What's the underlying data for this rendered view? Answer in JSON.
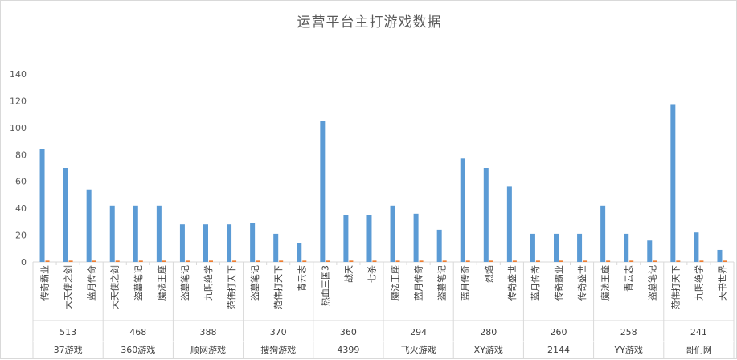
{
  "chart_data": {
    "type": "bar",
    "title": "运营平台主打游戏数据",
    "ylim": [
      0,
      140
    ],
    "yticks": [
      0,
      20,
      40,
      60,
      80,
      100,
      120,
      140
    ],
    "grid": false,
    "legend": "none",
    "colors": {
      "primary": "#5b9bd5",
      "secondary": "#ed7d31"
    },
    "groups": [
      {
        "platform": "37游戏",
        "count": "513",
        "games": [
          "传奇霸业",
          "大天使之剑",
          "蓝月传奇"
        ],
        "values": [
          84,
          70,
          54
        ]
      },
      {
        "platform": "360游戏",
        "count": "468",
        "games": [
          "大天使之剑",
          "盗墓笔记",
          "魔法王座"
        ],
        "values": [
          42,
          42,
          42
        ]
      },
      {
        "platform": "顺网游戏",
        "count": "388",
        "games": [
          "盗墓笔记",
          "九阴绝学",
          "范伟打天下"
        ],
        "values": [
          28,
          28,
          28
        ]
      },
      {
        "platform": "搜狗游戏",
        "count": "370",
        "games": [
          "盗墓笔记",
          "范伟打天下",
          "青云志"
        ],
        "values": [
          29,
          21,
          14
        ]
      },
      {
        "platform": "4399",
        "count": "360",
        "games": [
          "热血三国3",
          "战天",
          "七杀"
        ],
        "values": [
          105,
          35,
          35
        ]
      },
      {
        "platform": "飞火游戏",
        "count": "294",
        "games": [
          "魔法王座",
          "蓝月传奇",
          "盗墓笔记"
        ],
        "values": [
          42,
          36,
          24
        ]
      },
      {
        "platform": "XY游戏",
        "count": "280",
        "games": [
          "蓝月传奇",
          "烈焰",
          "传奇盛世"
        ],
        "values": [
          77,
          70,
          56
        ]
      },
      {
        "platform": "2144",
        "count": "260",
        "games": [
          "蓝月传奇",
          "传奇霸业",
          "传奇盛世"
        ],
        "values": [
          21,
          21,
          21
        ]
      },
      {
        "platform": "YY游戏",
        "count": "258",
        "games": [
          "魔法王座",
          "青云志",
          "盗墓笔记"
        ],
        "values": [
          42,
          21,
          16
        ]
      },
      {
        "platform": "哥们网",
        "count": "241",
        "games": [
          "范伟打天下",
          "九阴绝学",
          "天书世界"
        ],
        "values": [
          117,
          22,
          9
        ]
      }
    ],
    "secondary_values": [
      [
        1,
        1,
        1
      ],
      [
        1,
        1,
        1
      ],
      [
        1,
        1,
        1
      ],
      [
        1,
        1,
        1
      ],
      [
        1,
        1,
        1
      ],
      [
        1,
        1,
        1
      ],
      [
        1,
        1,
        1
      ],
      [
        1,
        1,
        1
      ],
      [
        1,
        1,
        1
      ],
      [
        1,
        1,
        1
      ]
    ]
  }
}
